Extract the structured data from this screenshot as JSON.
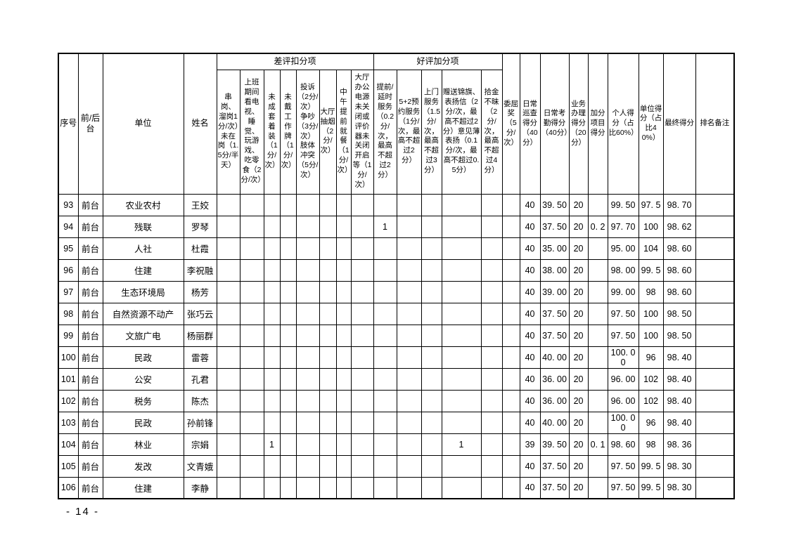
{
  "page": {
    "page_number": "- 14 -"
  },
  "table": {
    "column_keys": [
      "no",
      "desk",
      "unit",
      "name",
      "d1",
      "d2",
      "d3",
      "d4",
      "d5",
      "d6",
      "d7",
      "d8",
      "b1",
      "b2",
      "b3",
      "b4",
      "b5",
      "grievance",
      "patrol",
      "attendance",
      "business",
      "bonus",
      "personal",
      "unit_score",
      "final",
      "remark"
    ],
    "header": {
      "serial": "序号",
      "desk": "前/后台",
      "unit": "单位",
      "name": "姓名",
      "deduction_group": "差评扣分项",
      "bonus_group": "好评加分项",
      "deduction_cols": [
        "串岗、溜岗1分/次）未在岗（1.5分/半天）",
        "上班期间看电视、睡觉、玩游戏、吃零食（2分/次）",
        "未成套着装（1分/次）",
        "未戴工作牌（1分/次）",
        "投诉（2分/次）争吵（3分/次）肢体冲突（5分/次）",
        "大厅抽烟（2分/次）",
        "中午提前就餐（1分/次）",
        "大厅办公电源未关闭或评价器未关闭开启等（1分/次）"
      ],
      "bonus_cols": [
        "提前/延时服务（0.2分/次，最高不超过2分）",
        "5+2预约服务（1分/次，最高不超过2分）",
        "上门服务（1.5分/次，最高不超过3分）",
        "赠送锦旗、表扬信（2分/次，最高不超过2分）意见薄表扬（0.1分/次，最高不超过0.5分）",
        "拾金不昧（2分/次，最高不超过4分）"
      ],
      "grievance": "委屈奖（5分/次）",
      "patrol": "日常巡查得分（40分）",
      "attendance": "日常考勤得分（40分）",
      "business": "业务办理得分（20分）",
      "bonus": "加分项目得分",
      "personal": "个人得分（占比60%）",
      "unit_score": "单位得分（占比40%）",
      "final": "最终得分",
      "remark": "排名备注"
    },
    "rows": [
      {
        "no": "93",
        "desk": "前台",
        "unit": "农业农村",
        "name": "王姣",
        "patrol": "40",
        "attendance": "39. 50",
        "business": "20",
        "personal": "99. 50",
        "unit_score": "97. 5",
        "final": "98. 70"
      },
      {
        "no": "94",
        "desk": "前台",
        "unit": "残联",
        "name": "罗琴",
        "b1": "1",
        "patrol": "40",
        "attendance": "37. 50",
        "business": "20",
        "bonus": "0. 2",
        "personal": "97. 70",
        "unit_score": "100",
        "final": "98. 62"
      },
      {
        "no": "95",
        "desk": "前台",
        "unit": "人社",
        "name": "杜霞",
        "patrol": "40",
        "attendance": "35. 00",
        "business": "20",
        "personal": "95. 00",
        "unit_score": "104",
        "final": "98. 60"
      },
      {
        "no": "96",
        "desk": "前台",
        "unit": "住建",
        "name": "李祝融",
        "patrol": "40",
        "attendance": "38. 00",
        "business": "20",
        "personal": "98. 00",
        "unit_score": "99. 5",
        "final": "98. 60"
      },
      {
        "no": "97",
        "desk": "前台",
        "unit": "生态环境局",
        "name": "杨芳",
        "patrol": "40",
        "attendance": "39. 00",
        "business": "20",
        "personal": "99. 00",
        "unit_score": "98",
        "final": "98. 60"
      },
      {
        "no": "98",
        "desk": "前台",
        "unit": "自然资源不动产",
        "name": "张巧云",
        "patrol": "40",
        "attendance": "37. 50",
        "business": "20",
        "personal": "97. 50",
        "unit_score": "100",
        "final": "98. 50"
      },
      {
        "no": "99",
        "desk": "前台",
        "unit": "文旅广电",
        "name": "杨丽群",
        "patrol": "40",
        "attendance": "37. 50",
        "business": "20",
        "personal": "97. 50",
        "unit_score": "100",
        "final": "98. 50"
      },
      {
        "no": "100",
        "desk": "前台",
        "unit": "民政",
        "name": "雷蓉",
        "patrol": "40",
        "attendance": "40. 00",
        "business": "20",
        "personal": "100. 00",
        "unit_score": "96",
        "final": "98. 40"
      },
      {
        "no": "101",
        "desk": "前台",
        "unit": "公安",
        "name": "孔君",
        "patrol": "40",
        "attendance": "36. 00",
        "business": "20",
        "personal": "96. 00",
        "unit_score": "102",
        "final": "98. 40"
      },
      {
        "no": "102",
        "desk": "前台",
        "unit": "税务",
        "name": "陈杰",
        "patrol": "40",
        "attendance": "36. 00",
        "business": "20",
        "personal": "96. 00",
        "unit_score": "102",
        "final": "98. 40"
      },
      {
        "no": "103",
        "desk": "前台",
        "unit": "民政",
        "name": "孙前锋",
        "patrol": "40",
        "attendance": "40. 00",
        "business": "20",
        "personal": "100. 00",
        "unit_score": "96",
        "final": "98. 40"
      },
      {
        "no": "104",
        "desk": "前台",
        "unit": "林业",
        "name": "宗娟",
        "d3": "1",
        "b4": "1",
        "patrol": "39",
        "attendance": "39. 50",
        "business": "20",
        "bonus": "0. 1",
        "personal": "98. 60",
        "unit_score": "98",
        "final": "98. 36"
      },
      {
        "no": "105",
        "desk": "前台",
        "unit": "发改",
        "name": "文青娥",
        "patrol": "40",
        "attendance": "37. 50",
        "business": "20",
        "personal": "97. 50",
        "unit_score": "99. 5",
        "final": "98. 30"
      },
      {
        "no": "106",
        "desk": "前台",
        "unit": "住建",
        "name": "李静",
        "patrol": "40",
        "attendance": "37. 50",
        "business": "20",
        "personal": "97. 50",
        "unit_score": "99. 5",
        "final": "98. 30"
      }
    ]
  }
}
